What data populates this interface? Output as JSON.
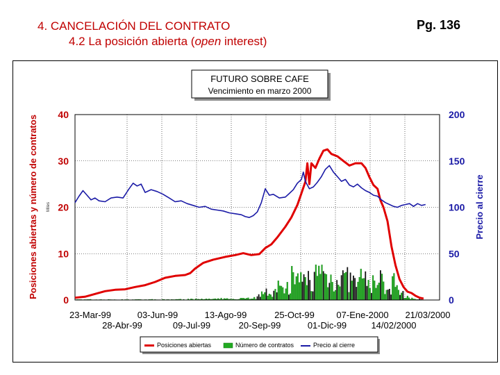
{
  "header": {
    "title": "4. CANCELACIÓN DEL CONTRATO",
    "subtitle_pre": "4.2 La posición abierta (",
    "subtitle_em": "open",
    "subtitle_post": " interest)",
    "page": "Pg. 136"
  },
  "chart_data": {
    "type": "line",
    "title": "FUTURO SOBRE CAFE",
    "subtitle": "Vencimiento en marzo 2000",
    "ylabel_left": "Posiciones abiertas y número de contratos",
    "ylabel_left_units": "Miles",
    "ylabel_right": "Precio al cierre",
    "ylim_left": [
      0,
      40
    ],
    "ylim_right": [
      0,
      200
    ],
    "yticks_left": [
      "0",
      "10",
      "20",
      "30",
      "40"
    ],
    "yticks_right": [
      "0",
      "50",
      "100",
      "150",
      "200"
    ],
    "x_ticks_row1": [
      "23-Mar-99",
      "03-Jun-99",
      "13-Ago-99",
      "25-Oct-99",
      "07-Ene-2000",
      "21/03/2000"
    ],
    "x_ticks_row2": [
      "28-Abr-99",
      "09-Jul-99",
      "20-Sep-99",
      "01-Dic-99",
      "14/02/2000"
    ],
    "x_range_days": [
      0,
      364
    ],
    "grid": true,
    "legend": [
      "Posiciones abiertas",
      "Número de contratos",
      "Precio al cierre"
    ],
    "series_colors": {
      "open_interest": "#e00000",
      "volume": "#22aa22",
      "price": "#1a1aa6"
    },
    "open_interest": [
      [
        0,
        0.5
      ],
      [
        10,
        0.7
      ],
      [
        20,
        1.3
      ],
      [
        30,
        1.9
      ],
      [
        40,
        2.2
      ],
      [
        50,
        2.3
      ],
      [
        60,
        2.8
      ],
      [
        70,
        3.2
      ],
      [
        80,
        3.9
      ],
      [
        90,
        4.8
      ],
      [
        100,
        5.2
      ],
      [
        110,
        5.4
      ],
      [
        115,
        5.8
      ],
      [
        120,
        6.8
      ],
      [
        128,
        8.0
      ],
      [
        138,
        8.7
      ],
      [
        150,
        9.3
      ],
      [
        160,
        9.7
      ],
      [
        168,
        10.1
      ],
      [
        176,
        9.7
      ],
      [
        184,
        9.9
      ],
      [
        190,
        11.2
      ],
      [
        196,
        12.0
      ],
      [
        202,
        13.5
      ],
      [
        210,
        15.8
      ],
      [
        216,
        17.8
      ],
      [
        222,
        20.5
      ],
      [
        226,
        23.0
      ],
      [
        230,
        25.5
      ],
      [
        232,
        29.5
      ],
      [
        234,
        25.0
      ],
      [
        236,
        29.5
      ],
      [
        240,
        28.5
      ],
      [
        244,
        30.5
      ],
      [
        248,
        32.2
      ],
      [
        252,
        32.5
      ],
      [
        256,
        31.5
      ],
      [
        262,
        31.0
      ],
      [
        268,
        30.0
      ],
      [
        274,
        29.0
      ],
      [
        280,
        29.5
      ],
      [
        286,
        29.5
      ],
      [
        290,
        28.5
      ],
      [
        294,
        26.5
      ],
      [
        298,
        24.8
      ],
      [
        302,
        24.0
      ],
      [
        305,
        21.5
      ],
      [
        308,
        20.0
      ],
      [
        312,
        17.0
      ],
      [
        316,
        11.5
      ],
      [
        320,
        7.5
      ],
      [
        324,
        4.5
      ],
      [
        328,
        2.8
      ],
      [
        332,
        1.8
      ],
      [
        336,
        1.5
      ],
      [
        340,
        0.9
      ],
      [
        344,
        0.5
      ],
      [
        348,
        0.3
      ]
    ],
    "price": [
      [
        0,
        105
      ],
      [
        4,
        112
      ],
      [
        8,
        118
      ],
      [
        12,
        113
      ],
      [
        16,
        108
      ],
      [
        20,
        110
      ],
      [
        24,
        107
      ],
      [
        30,
        106
      ],
      [
        36,
        110
      ],
      [
        42,
        111
      ],
      [
        48,
        110
      ],
      [
        54,
        120
      ],
      [
        58,
        126
      ],
      [
        62,
        123
      ],
      [
        66,
        125
      ],
      [
        70,
        116
      ],
      [
        76,
        119
      ],
      [
        82,
        117
      ],
      [
        88,
        114
      ],
      [
        94,
        110
      ],
      [
        100,
        106
      ],
      [
        106,
        107
      ],
      [
        112,
        104
      ],
      [
        118,
        102
      ],
      [
        124,
        100
      ],
      [
        130,
        101
      ],
      [
        136,
        98
      ],
      [
        142,
        97
      ],
      [
        148,
        96
      ],
      [
        154,
        94
      ],
      [
        160,
        93
      ],
      [
        166,
        92
      ],
      [
        170,
        90
      ],
      [
        174,
        89
      ],
      [
        178,
        91
      ],
      [
        182,
        95
      ],
      [
        186,
        105
      ],
      [
        190,
        120
      ],
      [
        194,
        113
      ],
      [
        198,
        114
      ],
      [
        204,
        110
      ],
      [
        210,
        111
      ],
      [
        214,
        115
      ],
      [
        218,
        119
      ],
      [
        222,
        126
      ],
      [
        226,
        130
      ],
      [
        228,
        138
      ],
      [
        230,
        128
      ],
      [
        234,
        120
      ],
      [
        238,
        122
      ],
      [
        242,
        127
      ],
      [
        246,
        133
      ],
      [
        250,
        141
      ],
      [
        254,
        145
      ],
      [
        258,
        138
      ],
      [
        262,
        133
      ],
      [
        266,
        128
      ],
      [
        270,
        130
      ],
      [
        274,
        124
      ],
      [
        278,
        122
      ],
      [
        282,
        125
      ],
      [
        286,
        121
      ],
      [
        290,
        118
      ],
      [
        294,
        116
      ],
      [
        298,
        113
      ],
      [
        302,
        112
      ],
      [
        306,
        108
      ],
      [
        310,
        105
      ],
      [
        314,
        103
      ],
      [
        318,
        101
      ],
      [
        322,
        100
      ],
      [
        326,
        102
      ],
      [
        330,
        103
      ],
      [
        334,
        104
      ],
      [
        338,
        101
      ],
      [
        342,
        104
      ],
      [
        346,
        102
      ],
      [
        350,
        103
      ]
    ],
    "volume_envelope": [
      [
        0,
        0.1
      ],
      [
        80,
        0.1
      ],
      [
        150,
        0.3
      ],
      [
        180,
        0.6
      ],
      [
        190,
        1.5
      ],
      [
        200,
        2.5
      ],
      [
        206,
        3.2
      ],
      [
        212,
        4.5
      ],
      [
        218,
        5.0
      ],
      [
        224,
        5.5
      ],
      [
        230,
        5.4
      ],
      [
        236,
        6.5
      ],
      [
        240,
        7.4
      ],
      [
        246,
        7.8
      ],
      [
        252,
        6.8
      ],
      [
        258,
        6.0
      ],
      [
        264,
        6.5
      ],
      [
        270,
        6.4
      ],
      [
        276,
        5.4
      ],
      [
        282,
        5.2
      ],
      [
        288,
        6.0
      ],
      [
        294,
        5.3
      ],
      [
        300,
        4.9
      ],
      [
        306,
        4.8
      ],
      [
        312,
        4.4
      ],
      [
        318,
        4.5
      ],
      [
        324,
        2.2
      ],
      [
        330,
        0.8
      ],
      [
        336,
        0.4
      ],
      [
        342,
        0.2
      ],
      [
        350,
        0.1
      ]
    ]
  }
}
